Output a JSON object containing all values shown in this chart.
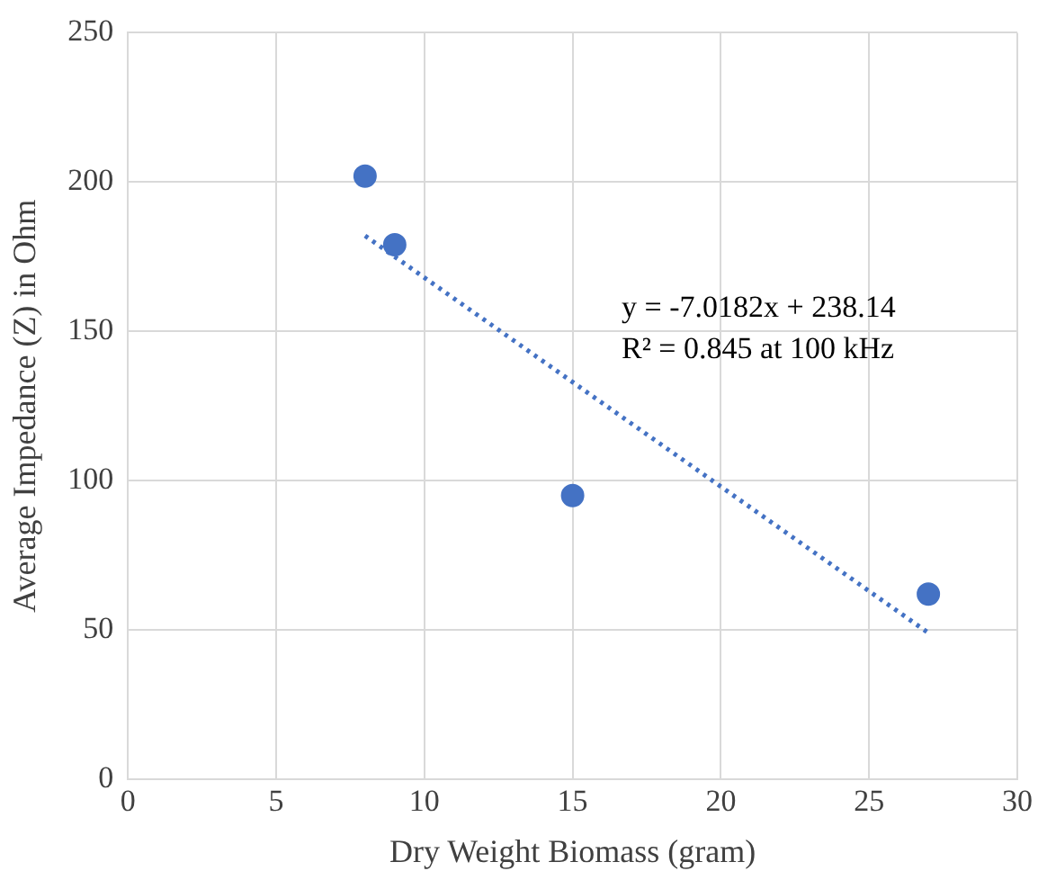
{
  "chart_data": {
    "type": "scatter",
    "xlabel": "Dry Weight Biomass (gram)",
    "ylabel": "Average Impedance (Z) in Ohm",
    "x": [
      8,
      9,
      15,
      27
    ],
    "series": [
      {
        "type": "scatter",
        "color": "#4472c4",
        "values": [
          202,
          179,
          95,
          62
        ],
        "marker": "circle"
      },
      {
        "type": "line",
        "color": "#4472c4",
        "x": [
          8,
          27
        ],
        "values": [
          182,
          49
        ],
        "line_style": "dotted",
        "marker": "none"
      }
    ],
    "xlim": [
      0,
      30
    ],
    "xticks": [
      0,
      5,
      10,
      15,
      20,
      25,
      30
    ],
    "ylim": [
      0,
      250
    ],
    "yticks": [
      0,
      50,
      100,
      150,
      200,
      250
    ],
    "grid": true,
    "legend": false,
    "annotations": [
      "y = -7.0182x + 238.14",
      "R² = 0.845 at 100 kHz"
    ]
  }
}
